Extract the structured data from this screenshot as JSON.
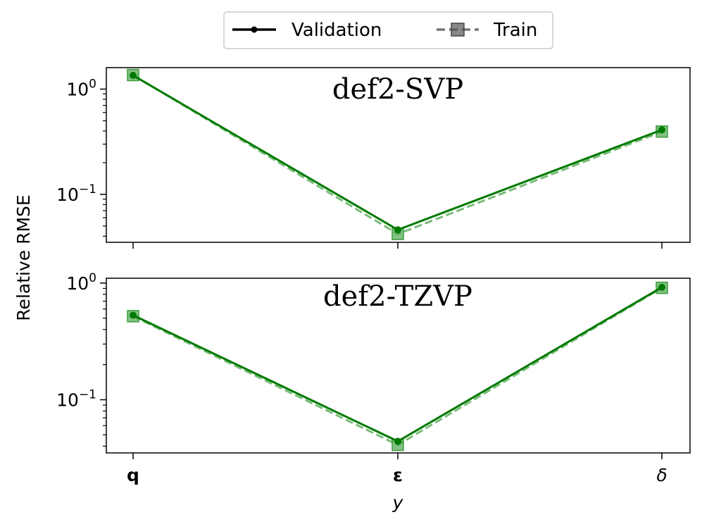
{
  "legend": {
    "entries": [
      {
        "label": "Validation",
        "style": "solid-dot"
      },
      {
        "label": "Train",
        "style": "dashed-square"
      }
    ]
  },
  "chart_data": [
    {
      "type": "line",
      "title": "def2-SVP",
      "xlabel": "",
      "ylabel": "Relative RMSE",
      "yscale": "log",
      "ylim": [
        0.035,
        1.6
      ],
      "categories": [
        "q",
        "ε",
        "δ"
      ],
      "y_ticks": [
        {
          "value": 1.0,
          "base": "10",
          "exp": "0"
        },
        {
          "value": 0.1,
          "base": "10",
          "exp": "−1"
        }
      ],
      "series": [
        {
          "name": "Validation",
          "values": [
            1.35,
            0.046,
            0.41
          ],
          "color": "#007a00",
          "linestyle": "solid",
          "marker": "dot"
        },
        {
          "name": "Train",
          "values": [
            1.36,
            0.042,
            0.395
          ],
          "color": "#3f9f3f",
          "linestyle": "dashed",
          "marker": "square"
        }
      ]
    },
    {
      "type": "line",
      "title": "def2-TZVP",
      "xlabel": "y",
      "ylabel": "",
      "yscale": "log",
      "ylim": [
        0.035,
        1.1
      ],
      "categories": [
        "q",
        "ε",
        "δ"
      ],
      "y_ticks": [
        {
          "value": 1.0,
          "base": "10",
          "exp": "0"
        },
        {
          "value": 0.1,
          "base": "10",
          "exp": "−1"
        }
      ],
      "series": [
        {
          "name": "Validation",
          "values": [
            0.53,
            0.044,
            0.92
          ],
          "color": "#007a00",
          "linestyle": "solid",
          "marker": "dot"
        },
        {
          "name": "Train",
          "values": [
            0.52,
            0.041,
            0.91
          ],
          "color": "#3f9f3f",
          "linestyle": "dashed",
          "marker": "square"
        }
      ]
    }
  ]
}
